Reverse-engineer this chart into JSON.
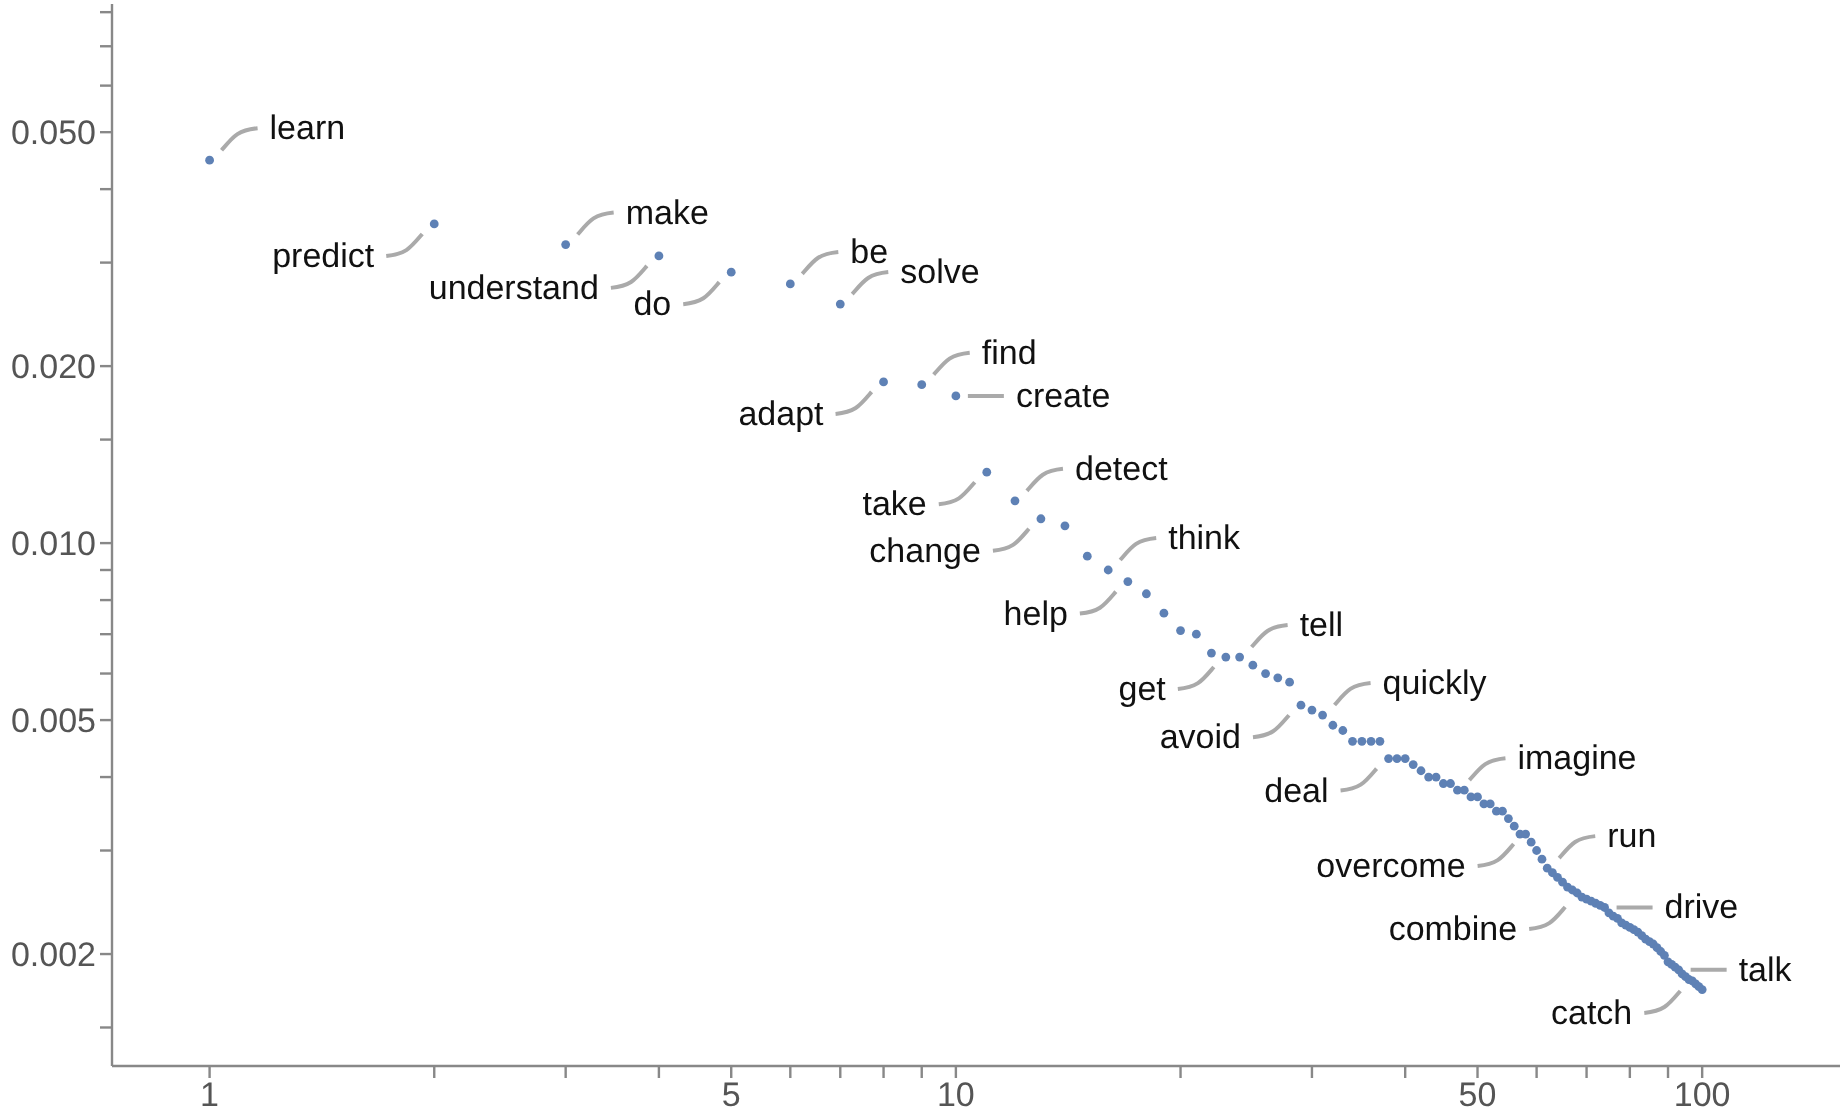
{
  "chart_data": {
    "type": "scatter",
    "log": "xy",
    "grid": false,
    "legend": false,
    "marker": "circle",
    "xlim": [
      0.74,
      153
    ],
    "ylim": [
      0.00129,
      0.0826
    ],
    "xticks": [
      1,
      {
        "value": 2,
        "label": null
      },
      {
        "value": 3,
        "label": null
      },
      {
        "value": 4,
        "label": null
      },
      5,
      {
        "value": 6,
        "label": null
      },
      {
        "value": 7,
        "label": null
      },
      {
        "value": 8,
        "label": null
      },
      {
        "value": 9,
        "label": null
      },
      10,
      {
        "value": 20,
        "label": null
      },
      {
        "value": 30,
        "label": null
      },
      {
        "value": 40,
        "label": null
      },
      50,
      {
        "value": 60,
        "label": null
      },
      {
        "value": 70,
        "label": null
      },
      {
        "value": 80,
        "label": null
      },
      {
        "value": 90,
        "label": null
      },
      100
    ],
    "yticks": [
      {
        "value": 0.0015,
        "label": null
      },
      0.002,
      {
        "value": 0.003,
        "label": null
      },
      {
        "value": 0.004,
        "label": null
      },
      0.005,
      {
        "value": 0.006,
        "label": null
      },
      {
        "value": 0.007,
        "label": null
      },
      {
        "value": 0.008,
        "label": null
      },
      {
        "value": 0.009,
        "label": null
      },
      {
        "value": 0.01,
        "label": "0.010"
      },
      {
        "value": 0.015,
        "label": null
      },
      {
        "value": 0.02,
        "label": "0.020"
      },
      {
        "value": 0.03,
        "label": null
      },
      {
        "value": 0.04,
        "label": null
      },
      {
        "value": 0.05,
        "label": "0.050"
      },
      {
        "value": 0.06,
        "label": null
      },
      {
        "value": 0.07,
        "label": null
      },
      {
        "value": 0.08,
        "label": null
      }
    ],
    "series": [
      {
        "color": "#5e81b5",
        "x": [
          1,
          2,
          3,
          4,
          5,
          6,
          7,
          8,
          9,
          10,
          11,
          12,
          13,
          14,
          15,
          16,
          17,
          18,
          19,
          20,
          21,
          22,
          23,
          24,
          25,
          26,
          27,
          28,
          29,
          30,
          31,
          32,
          33,
          34,
          35,
          36,
          37,
          38,
          39,
          40,
          41,
          42,
          43,
          44,
          45,
          46,
          47,
          48,
          49,
          50,
          51,
          52,
          53,
          54,
          55,
          56,
          57,
          58,
          59,
          60,
          61,
          62,
          63,
          64,
          65,
          66,
          67,
          68,
          69,
          70,
          71,
          72,
          73,
          74,
          75,
          76,
          77,
          78,
          79,
          80,
          81,
          82,
          83,
          84,
          85,
          86,
          87,
          88,
          89,
          90,
          91,
          92,
          93,
          94,
          95,
          96,
          97,
          98,
          99,
          100
        ],
        "values": [
          0.0448,
          0.0349,
          0.0322,
          0.0308,
          0.0289,
          0.0276,
          0.0255,
          0.0188,
          0.0186,
          0.0178,
          0.0132,
          0.0118,
          0.011,
          0.0107,
          0.0095,
          0.009,
          0.0086,
          0.0082,
          0.0076,
          0.0071,
          0.007,
          0.0065,
          0.0064,
          0.0064,
          0.0062,
          0.006,
          0.0059,
          0.0058,
          0.0053,
          0.0052,
          0.0051,
          0.0049,
          0.0048,
          0.0046,
          0.0046,
          0.0046,
          0.0046,
          0.0043,
          0.0043,
          0.0043,
          0.0042,
          0.0041,
          0.004,
          0.004,
          0.0039,
          0.0039,
          0.0038,
          0.0038,
          0.0037,
          0.0037,
          0.0036,
          0.0036,
          0.0035,
          0.0035,
          0.0034,
          0.0033,
          0.0032,
          0.0032,
          0.0031,
          0.003,
          0.0029,
          0.0028,
          0.00275,
          0.0027,
          0.00265,
          0.0026,
          0.00257,
          0.00254,
          0.0025,
          0.00248,
          0.00246,
          0.00244,
          0.00242,
          0.0024,
          0.00235,
          0.00232,
          0.0023,
          0.00226,
          0.00224,
          0.00222,
          0.0022,
          0.00218,
          0.00215,
          0.00212,
          0.0021,
          0.00208,
          0.00205,
          0.00202,
          0.00199,
          0.00194,
          0.00192,
          0.0019,
          0.00188,
          0.00185,
          0.00183,
          0.00181,
          0.0018,
          0.00178,
          0.00176,
          0.00174
        ]
      }
    ],
    "annotations": [
      {
        "text": "learn",
        "x": 1,
        "y": 0.0448
      },
      {
        "text": "predict",
        "x": 2,
        "y": 0.0349
      },
      {
        "text": "make",
        "x": 3,
        "y": 0.0322
      },
      {
        "text": "understand",
        "x": 4,
        "y": 0.0308
      },
      {
        "text": "be",
        "x": 6,
        "y": 0.0276
      },
      {
        "text": "do",
        "x": 5,
        "y": 0.0289
      },
      {
        "text": "solve",
        "x": 7,
        "y": 0.0255
      },
      {
        "text": "adapt",
        "x": 8,
        "y": 0.0188
      },
      {
        "text": "find",
        "x": 9,
        "y": 0.0186
      },
      {
        "text": "take",
        "x": 11,
        "y": 0.0132
      },
      {
        "text": "create",
        "x": 10,
        "y": 0.0178
      },
      {
        "text": "change",
        "x": 13,
        "y": 0.011
      },
      {
        "text": "detect",
        "x": 12,
        "y": 0.0118
      },
      {
        "text": "help",
        "x": 17,
        "y": 0.0086
      },
      {
        "text": "think",
        "x": 16,
        "y": 0.009
      },
      {
        "text": "get",
        "x": 23,
        "y": 0.0064
      },
      {
        "text": "tell",
        "x": 24,
        "y": 0.0064
      },
      {
        "text": "avoid",
        "x": 29,
        "y": 0.0053
      },
      {
        "text": "quickly",
        "x": 31,
        "y": 0.0051
      },
      {
        "text": "deal",
        "x": 38,
        "y": 0.0043
      },
      {
        "text": "imagine",
        "x": 47,
        "y": 0.0038
      },
      {
        "text": "overcome",
        "x": 58,
        "y": 0.0032
      },
      {
        "text": "run",
        "x": 62,
        "y": 0.0028
      },
      {
        "text": "combine",
        "x": 68,
        "y": 0.0025
      },
      {
        "text": "drive",
        "x": 74,
        "y": 0.0024
      },
      {
        "text": "catch",
        "x": 97,
        "y": 0.0018
      },
      {
        "text": "talk",
        "x": 93,
        "y": 0.00188
      }
    ]
  }
}
